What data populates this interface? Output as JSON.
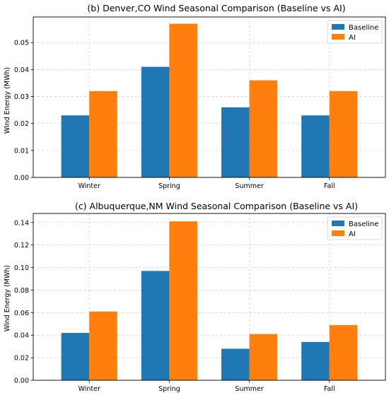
{
  "chart_data": [
    {
      "type": "bar",
      "title": "(b) Denver,CO Wind Seasonal Comparison (Baseline vs AI)",
      "xlabel": "",
      "ylabel": "Wind Energy (MWh)",
      "categories": [
        "Winter",
        "Spring",
        "Summer",
        "Fall"
      ],
      "ylim": [
        0,
        0.0595
      ],
      "yticks": [
        0.0,
        0.01,
        0.02,
        0.03,
        0.04,
        0.05
      ],
      "ytick_labels": [
        "0.00",
        "0.01",
        "0.02",
        "0.03",
        "0.04",
        "0.05"
      ],
      "grid": true,
      "legend_position": "top-right",
      "series": [
        {
          "name": "Baseline",
          "color": "#1f77b4",
          "values": [
            0.023,
            0.041,
            0.026,
            0.023
          ]
        },
        {
          "name": "AI",
          "color": "#ff7f0e",
          "values": [
            0.032,
            0.057,
            0.036,
            0.032
          ]
        }
      ]
    },
    {
      "type": "bar",
      "title": "(c) Albuquerque,NM Wind Seasonal Comparison (Baseline vs AI)",
      "xlabel": "",
      "ylabel": "Wind Energy (MWh)",
      "categories": [
        "Winter",
        "Spring",
        "Summer",
        "Fall"
      ],
      "ylim": [
        0,
        0.148
      ],
      "yticks": [
        0.0,
        0.02,
        0.04,
        0.06,
        0.08,
        0.1,
        0.12,
        0.14
      ],
      "ytick_labels": [
        "0.00",
        "0.02",
        "0.04",
        "0.06",
        "0.08",
        "0.10",
        "0.12",
        "0.14"
      ],
      "grid": true,
      "legend_position": "top-right",
      "series": [
        {
          "name": "Baseline",
          "color": "#1f77b4",
          "values": [
            0.042,
            0.097,
            0.028,
            0.034
          ]
        },
        {
          "name": "AI",
          "color": "#ff7f0e",
          "values": [
            0.061,
            0.141,
            0.041,
            0.049
          ]
        }
      ]
    }
  ]
}
